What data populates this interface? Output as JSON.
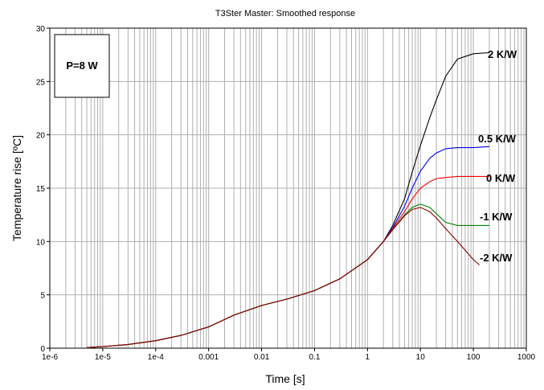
{
  "chart_data": {
    "type": "line",
    "title": "T3Ster Master: Smoothed response",
    "xlabel": "Time  [s]",
    "ylabel": "Temperature rise  [ºC]",
    "x_scale": "log",
    "xlim": [
      1e-06,
      1000
    ],
    "ylim": [
      0,
      30
    ],
    "grid": true,
    "x_tick_labels": [
      "1e-6",
      "1e-5",
      "1e-4",
      "0.001",
      "0.01",
      "0.1",
      "1",
      "10",
      "100",
      "1000"
    ],
    "y_ticks": [
      0,
      5,
      10,
      15,
      20,
      25,
      30
    ],
    "y_tick_labels": [
      "0",
      "5",
      "10",
      "15",
      "20",
      "25",
      "30"
    ],
    "annotation": "P=8 W",
    "series": [
      {
        "name": "2 K/W",
        "color": "#000000",
        "x": [
          5e-06,
          1e-05,
          3e-05,
          0.0001,
          0.0003,
          0.001,
          0.003,
          0.01,
          0.03,
          0.1,
          0.3,
          1,
          2,
          3,
          5,
          7,
          10,
          15,
          20,
          30,
          50,
          100,
          200
        ],
        "y": [
          0.05,
          0.15,
          0.35,
          0.7,
          1.2,
          2.0,
          3.1,
          4.0,
          4.6,
          5.4,
          6.5,
          8.3,
          10.0,
          11.5,
          14.0,
          16.5,
          19.0,
          21.6,
          23.3,
          25.5,
          27.1,
          27.6,
          27.7
        ]
      },
      {
        "name": "0.5 K/W",
        "color": "#0000ff",
        "x": [
          5e-06,
          1e-05,
          3e-05,
          0.0001,
          0.0003,
          0.001,
          0.003,
          0.01,
          0.03,
          0.1,
          0.3,
          1,
          2,
          3,
          5,
          7,
          10,
          15,
          20,
          30,
          50,
          100,
          200
        ],
        "y": [
          0.05,
          0.15,
          0.35,
          0.7,
          1.2,
          2.0,
          3.1,
          4.0,
          4.6,
          5.4,
          6.5,
          8.3,
          10.0,
          11.3,
          13.3,
          15.0,
          16.6,
          17.8,
          18.3,
          18.7,
          18.8,
          18.8,
          18.9
        ]
      },
      {
        "name": "0 K/W",
        "color": "#ff0000",
        "x": [
          5e-06,
          1e-05,
          3e-05,
          0.0001,
          0.0003,
          0.001,
          0.003,
          0.01,
          0.03,
          0.1,
          0.3,
          1,
          2,
          3,
          5,
          7,
          10,
          15,
          20,
          30,
          50,
          100,
          200
        ],
        "y": [
          0.05,
          0.15,
          0.35,
          0.7,
          1.2,
          2.0,
          3.1,
          4.0,
          4.6,
          5.4,
          6.5,
          8.3,
          10.0,
          11.2,
          12.8,
          14.0,
          15.0,
          15.6,
          15.9,
          16.0,
          16.1,
          16.1,
          16.1
        ]
      },
      {
        "name": "-1 K/W",
        "color": "#008000",
        "x": [
          5e-06,
          1e-05,
          3e-05,
          0.0001,
          0.0003,
          0.001,
          0.003,
          0.01,
          0.03,
          0.1,
          0.3,
          1,
          2,
          3,
          5,
          7,
          10,
          15,
          20,
          30,
          50,
          100,
          200
        ],
        "y": [
          0.05,
          0.15,
          0.35,
          0.7,
          1.2,
          2.0,
          3.1,
          4.0,
          4.6,
          5.4,
          6.5,
          8.3,
          10.0,
          11.1,
          12.5,
          13.2,
          13.5,
          13.2,
          12.6,
          11.8,
          11.5,
          11.5,
          11.5
        ]
      },
      {
        "name": "-2 K/W",
        "color": "#8b0000",
        "x": [
          5e-06,
          1e-05,
          3e-05,
          0.0001,
          0.0003,
          0.001,
          0.003,
          0.01,
          0.03,
          0.1,
          0.3,
          1,
          2,
          3,
          5,
          7,
          10,
          15,
          20,
          30,
          50,
          100,
          130
        ],
        "y": [
          0.05,
          0.15,
          0.35,
          0.7,
          1.2,
          2.0,
          3.1,
          4.0,
          4.6,
          5.4,
          6.5,
          8.3,
          10.0,
          11.1,
          12.4,
          13.0,
          13.2,
          12.8,
          12.2,
          11.2,
          10.0,
          8.3,
          7.8
        ]
      }
    ]
  }
}
